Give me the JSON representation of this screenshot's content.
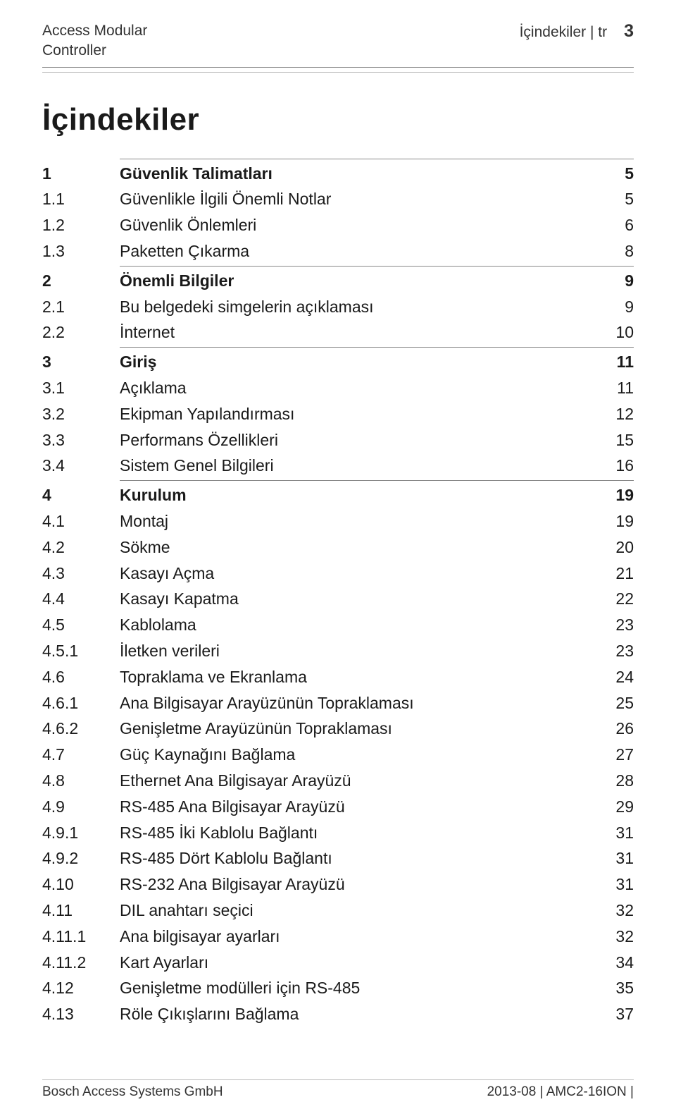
{
  "header": {
    "left_line1": "Access Modular",
    "left_line2": "Controller",
    "right_text": "İçindekiler | tr",
    "page_number": "3"
  },
  "heading": "İçindekiler",
  "toc": [
    {
      "num": "1",
      "title": "Güvenlik Talimatları",
      "page": "5",
      "bold_all": true,
      "rule_before": true
    },
    {
      "num": "1.1",
      "title": "Güvenlikle İlgili Önemli Notlar",
      "page": "5"
    },
    {
      "num": "1.2",
      "title": "Güvenlik Önlemleri",
      "page": "6"
    },
    {
      "num": "1.3",
      "title": "Paketten Çıkarma",
      "page": "8"
    },
    {
      "num": "2",
      "title": "Önemli Bilgiler",
      "page": "9",
      "bold_all": true,
      "rule_before": true
    },
    {
      "num": "2.1",
      "title": "Bu belgedeki simgelerin açıklaması",
      "page": "9"
    },
    {
      "num": "2.2",
      "title": "İnternet",
      "page": "10"
    },
    {
      "num": "3",
      "title": "Giriş",
      "page": "11",
      "bold_all": true,
      "rule_before": true
    },
    {
      "num": "3.1",
      "title": "Açıklama",
      "page": "11"
    },
    {
      "num": "3.2",
      "title": "Ekipman Yapılandırması",
      "page": "12"
    },
    {
      "num": "3.3",
      "title": "Performans Özellikleri",
      "page": "15"
    },
    {
      "num": "3.4",
      "title": "Sistem Genel Bilgileri",
      "page": "16"
    },
    {
      "num": "4",
      "title": "Kurulum",
      "page": "19",
      "bold_all": true,
      "rule_before": true
    },
    {
      "num": "4.1",
      "title": "Montaj",
      "page": "19"
    },
    {
      "num": "4.2",
      "title": "Sökme",
      "page": "20"
    },
    {
      "num": "4.3",
      "title": "Kasayı Açma",
      "page": "21"
    },
    {
      "num": "4.4",
      "title": "Kasayı Kapatma",
      "page": "22"
    },
    {
      "num": "4.5",
      "title": "Kablolama",
      "page": "23"
    },
    {
      "num": "4.5.1",
      "title": "İletken verileri",
      "page": "23"
    },
    {
      "num": "4.6",
      "title": "Topraklama ve Ekranlama",
      "page": "24"
    },
    {
      "num": "4.6.1",
      "title": "Ana Bilgisayar Arayüzünün Topraklaması",
      "page": "25"
    },
    {
      "num": "4.6.2",
      "title": "Genişletme Arayüzünün Topraklaması",
      "page": "26"
    },
    {
      "num": "4.7",
      "title": "Güç Kaynağını Bağlama",
      "page": "27"
    },
    {
      "num": "4.8",
      "title": "Ethernet Ana Bilgisayar Arayüzü",
      "page": "28"
    },
    {
      "num": "4.9",
      "title": "RS-485 Ana Bilgisayar Arayüzü",
      "page": "29"
    },
    {
      "num": "4.9.1",
      "title": "RS-485 İki Kablolu Bağlantı",
      "page": "31"
    },
    {
      "num": "4.9.2",
      "title": "RS-485 Dört Kablolu Bağlantı",
      "page": "31"
    },
    {
      "num": "4.10",
      "title": "RS-232 Ana Bilgisayar Arayüzü",
      "page": "31"
    },
    {
      "num": "4.11",
      "title": "DIL anahtarı seçici",
      "page": "32"
    },
    {
      "num": "4.11.1",
      "title": "Ana bilgisayar ayarları",
      "page": "32"
    },
    {
      "num": "4.11.2",
      "title": "Kart Ayarları",
      "page": "34"
    },
    {
      "num": "4.12",
      "title": "Genişletme modülleri için RS-485",
      "page": "35"
    },
    {
      "num": "4.13",
      "title": "Röle Çıkışlarını Bağlama",
      "page": "37"
    }
  ],
  "footer": {
    "left": "Bosch Access Systems GmbH",
    "right": "2013-08 | AMC2-16ION |"
  },
  "colors": {
    "text": "#1a1a1a",
    "rule": "#888888",
    "rule_light": "#bbbbbb",
    "background": "#ffffff"
  }
}
